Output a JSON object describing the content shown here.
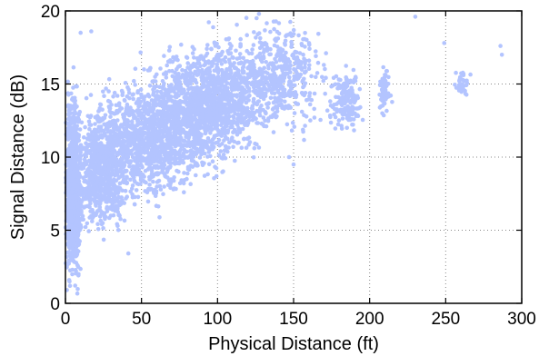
{
  "chart_data": {
    "type": "scatter",
    "title": "",
    "xlabel": "Physical Distance (ft)",
    "ylabel": "Signal Distance (dB)",
    "xlim": [
      0,
      300
    ],
    "ylim": [
      0,
      20
    ],
    "x_ticks": [
      0,
      50,
      100,
      150,
      200,
      250,
      300
    ],
    "y_ticks": [
      0,
      5,
      10,
      15,
      20
    ],
    "grid": true,
    "legend": "none",
    "marker_color": "#b3c4ff",
    "series": [
      {
        "clusters": [
          {
            "x": [
              0,
              10
            ],
            "y": [
              2,
              14
            ],
            "count": 900
          },
          {
            "x": [
              5,
              40
            ],
            "y": [
              5,
              13
            ],
            "count": 700
          },
          {
            "x": [
              20,
              80
            ],
            "y": [
              7,
              15
            ],
            "count": 900
          },
          {
            "x": [
              50,
              110
            ],
            "y": [
              9,
              17
            ],
            "count": 900
          },
          {
            "x": [
              80,
              130
            ],
            "y": [
              10,
              18
            ],
            "count": 700
          },
          {
            "x": [
              110,
              170
            ],
            "y": [
              12,
              19
            ],
            "count": 500
          },
          {
            "x": [
              175,
              195
            ],
            "y": [
              12,
              16
            ],
            "count": 180
          },
          {
            "x": [
              205,
              215
            ],
            "y": [
              13,
              16
            ],
            "count": 60
          },
          {
            "x": [
              255,
              265
            ],
            "y": [
              14,
              16
            ],
            "count": 40
          }
        ],
        "points": [
          {
            "x": 10,
            "y": 18.5
          },
          {
            "x": 17,
            "y": 18.6
          },
          {
            "x": 230,
            "y": 19.6
          },
          {
            "x": 249,
            "y": 17.8
          },
          {
            "x": 287,
            "y": 17.0
          },
          {
            "x": 286,
            "y": 17.6
          },
          {
            "x": 147,
            "y": 10.0
          },
          {
            "x": 150,
            "y": 9.5
          },
          {
            "x": 3,
            "y": 1.2
          }
        ]
      }
    ]
  }
}
